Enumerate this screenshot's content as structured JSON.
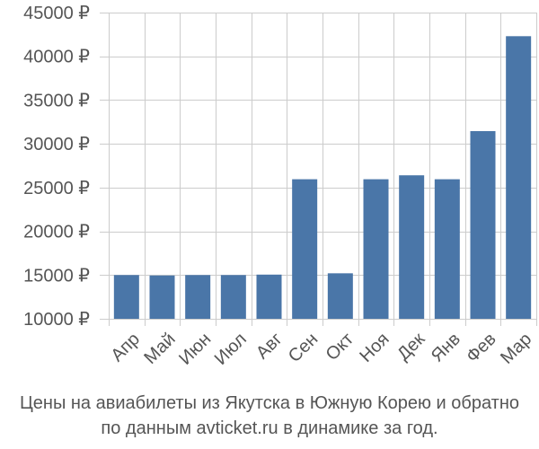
{
  "chart_data": {
    "type": "bar",
    "categories": [
      "Апр",
      "Май",
      "Июн",
      "Июл",
      "Авг",
      "Сен",
      "Окт",
      "Ноя",
      "Дек",
      "Янв",
      "Фев",
      "Мар"
    ],
    "values": [
      15000,
      14950,
      15000,
      15000,
      15050,
      25950,
      15200,
      25950,
      26400,
      25950,
      31450,
      42300
    ],
    "ylim": [
      10000,
      45000
    ],
    "yticks": [
      10000,
      15000,
      20000,
      25000,
      30000,
      35000,
      40000,
      45000
    ],
    "ytick_labels": [
      "10000 ₽",
      "15000 ₽",
      "20000 ₽",
      "25000 ₽",
      "30000 ₽",
      "35000 ₽",
      "40000 ₽",
      "45000 ₽"
    ],
    "grid": true,
    "bar_color": "#4a76a8",
    "grid_color": "#cccccc",
    "caption": [
      "Цены на авиабилеты из Якутска в Южную Корею и обратно",
      "по данным avticket.ru в динамике за год."
    ]
  }
}
